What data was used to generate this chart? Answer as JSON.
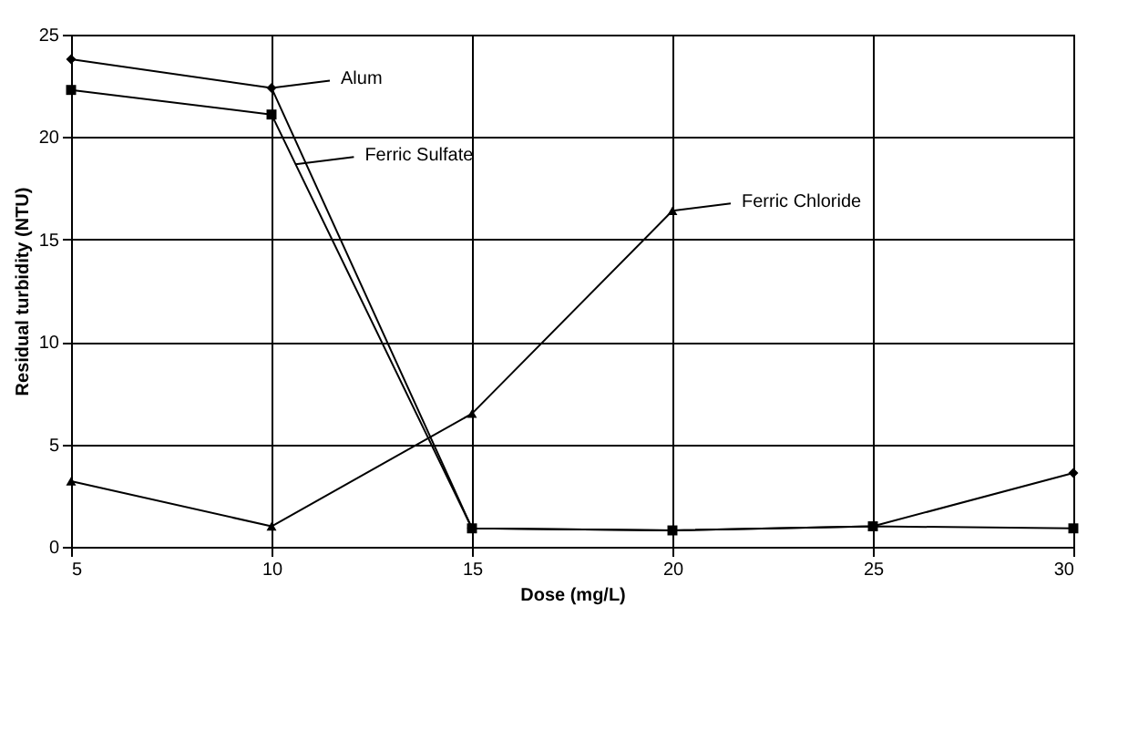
{
  "chart_data": {
    "type": "line",
    "xlabel": "Dose (mg/L)",
    "ylabel": "Residual turbidity (NTU)",
    "x": [
      5,
      10,
      15,
      20,
      25,
      30
    ],
    "series": [
      {
        "name": "Alum",
        "color": "#000000",
        "marker": "diamond",
        "values": [
          23.8,
          22.4,
          0.9,
          0.8,
          1.0,
          3.6
        ]
      },
      {
        "name": "Ferric Sulfate",
        "color": "#000000",
        "marker": "square",
        "values": [
          22.3,
          21.1,
          0.9,
          0.8,
          1.0,
          0.9
        ]
      },
      {
        "name": "Ferric Chloride",
        "color": "#000000",
        "marker": "triangle",
        "values": [
          3.2,
          1.0,
          6.5,
          16.4,
          null,
          null
        ]
      }
    ],
    "xlim": [
      5,
      30
    ],
    "xticks": [
      5,
      10,
      15,
      20,
      25,
      30
    ],
    "ylim": [
      0,
      25
    ],
    "yticks": [
      0,
      5,
      10,
      15,
      20,
      25
    ],
    "grid": true,
    "legend": "top"
  }
}
